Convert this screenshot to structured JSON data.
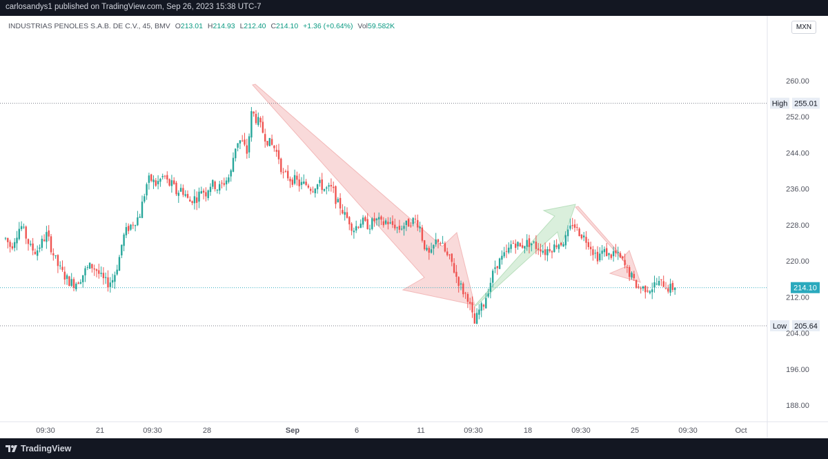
{
  "header": {
    "published_text": "carlosandys1 published on TradingView.com, Sep 26, 2023 15:38 UTC-7"
  },
  "legend": {
    "symbol": "INDUSTRIAS PENOLES S.A.B. DE C.V., 45, BMV",
    "open_label": "O",
    "open": "213.01",
    "high_label": "H",
    "high": "214.93",
    "low_label": "L",
    "low": "212.40",
    "close_label": "C",
    "close": "214.10",
    "change": "+1.36 (+0.64%)",
    "vol_label": "Vol",
    "volume": "59.582K"
  },
  "currency": "MXN",
  "footer": {
    "brand": "TradingView"
  },
  "colors": {
    "up": "#26a69a",
    "down": "#ef5350",
    "price_line": "#2aa9bd",
    "arrow_down_fill": "#f8d3d3",
    "arrow_up_fill": "#d4ecd6",
    "axis_text": "#50535e",
    "hl_label_bg": "#e8edf5"
  },
  "chart_data": {
    "type": "candlestick",
    "ylim": [
      180.0,
      268.0
    ],
    "y_ticks": [
      "260.00",
      "252.00",
      "244.00",
      "236.00",
      "228.00",
      "220.00",
      "212.00",
      "204.00",
      "196.00",
      "188.00"
    ],
    "x_ticks": [
      "09:30",
      "21",
      "09:30",
      "28",
      "Sep",
      "6",
      "11",
      "09:30",
      "18",
      "09:30",
      "25",
      "09:30",
      "Oct"
    ],
    "bold_x_ticks": [
      "Sep"
    ],
    "high_marker": {
      "label": "High",
      "value": "255.01"
    },
    "low_marker": {
      "label": "Low",
      "value": "205.64"
    },
    "last_price": "214.10",
    "candle_path": [
      [
        0,
        224
      ],
      [
        8,
        225
      ],
      [
        16,
        223
      ],
      [
        24,
        226
      ],
      [
        30,
        228
      ],
      [
        36,
        226
      ],
      [
        44,
        223
      ],
      [
        52,
        222
      ],
      [
        60,
        224
      ],
      [
        68,
        226
      ],
      [
        76,
        222
      ],
      [
        84,
        219
      ],
      [
        92,
        217
      ],
      [
        100,
        215.5
      ],
      [
        108,
        215
      ],
      [
        116,
        216
      ],
      [
        124,
        218
      ],
      [
        132,
        219
      ],
      [
        140,
        218
      ],
      [
        148,
        216
      ],
      [
        156,
        215
      ],
      [
        164,
        216
      ],
      [
        172,
        220
      ],
      [
        178,
        225
      ],
      [
        184,
        227
      ],
      [
        190,
        228
      ],
      [
        196,
        229
      ],
      [
        202,
        230
      ],
      [
        208,
        234
      ],
      [
        214,
        238
      ],
      [
        220,
        238
      ],
      [
        226,
        237
      ],
      [
        232,
        238
      ],
      [
        238,
        239
      ],
      [
        244,
        237
      ],
      [
        250,
        237
      ],
      [
        256,
        235
      ],
      [
        262,
        236
      ],
      [
        268,
        235
      ],
      [
        274,
        233
      ],
      [
        280,
        234
      ],
      [
        286,
        234
      ],
      [
        292,
        236
      ],
      [
        298,
        235
      ],
      [
        304,
        237
      ],
      [
        310,
        237
      ],
      [
        316,
        236
      ],
      [
        322,
        237
      ],
      [
        328,
        238
      ],
      [
        334,
        239
      ],
      [
        340,
        245
      ],
      [
        346,
        247
      ],
      [
        352,
        246
      ],
      [
        358,
        244
      ],
      [
        362,
        249
      ],
      [
        366,
        255
      ],
      [
        368,
        252
      ],
      [
        374,
        251
      ],
      [
        380,
        249
      ],
      [
        386,
        247
      ],
      [
        392,
        246
      ],
      [
        398,
        245
      ],
      [
        404,
        243
      ],
      [
        410,
        239
      ],
      [
        416,
        239
      ],
      [
        422,
        238
      ],
      [
        428,
        238
      ],
      [
        434,
        237
      ],
      [
        440,
        237
      ],
      [
        446,
        237
      ],
      [
        452,
        236
      ],
      [
        458,
        237
      ],
      [
        464,
        237
      ],
      [
        470,
        236
      ],
      [
        476,
        236
      ],
      [
        482,
        236
      ],
      [
        488,
        233
      ],
      [
        494,
        232
      ],
      [
        500,
        230
      ],
      [
        506,
        229
      ],
      [
        512,
        227
      ],
      [
        518,
        228
      ],
      [
        524,
        229
      ],
      [
        530,
        228
      ],
      [
        536,
        228
      ],
      [
        542,
        229
      ],
      [
        548,
        229
      ],
      [
        554,
        228
      ],
      [
        560,
        229
      ],
      [
        566,
        228
      ],
      [
        572,
        228
      ],
      [
        578,
        227
      ],
      [
        584,
        228
      ],
      [
        590,
        228
      ],
      [
        596,
        229
      ],
      [
        602,
        229
      ],
      [
        608,
        228
      ],
      [
        612,
        225
      ],
      [
        618,
        222
      ],
      [
        624,
        221
      ],
      [
        630,
        224
      ],
      [
        636,
        225
      ],
      [
        642,
        223
      ],
      [
        648,
        221
      ],
      [
        654,
        220
      ],
      [
        660,
        217
      ],
      [
        666,
        215
      ],
      [
        672,
        213
      ],
      [
        678,
        212
      ],
      [
        684,
        208
      ],
      [
        688,
        206
      ],
      [
        694,
        209
      ],
      [
        700,
        210
      ],
      [
        706,
        213
      ],
      [
        712,
        216
      ],
      [
        718,
        219
      ],
      [
        724,
        220
      ],
      [
        730,
        221
      ],
      [
        736,
        222
      ],
      [
        742,
        224
      ],
      [
        748,
        224
      ],
      [
        754,
        223
      ],
      [
        760,
        224
      ],
      [
        766,
        224
      ],
      [
        772,
        224
      ],
      [
        778,
        223
      ],
      [
        784,
        223
      ],
      [
        790,
        222
      ],
      [
        796,
        223
      ],
      [
        802,
        223
      ],
      [
        808,
        224
      ],
      [
        814,
        224
      ],
      [
        820,
        225
      ],
      [
        826,
        227
      ],
      [
        830,
        228.5
      ],
      [
        836,
        227
      ],
      [
        842,
        226
      ],
      [
        848,
        225
      ],
      [
        854,
        224
      ],
      [
        860,
        222
      ],
      [
        866,
        221
      ],
      [
        872,
        222
      ],
      [
        878,
        222
      ],
      [
        884,
        221
      ],
      [
        890,
        222
      ],
      [
        896,
        221
      ],
      [
        902,
        220
      ],
      [
        908,
        218
      ],
      [
        914,
        217
      ],
      [
        920,
        215
      ],
      [
        926,
        214
      ],
      [
        932,
        214
      ],
      [
        938,
        214
      ],
      [
        944,
        214
      ],
      [
        950,
        215
      ],
      [
        956,
        215
      ],
      [
        962,
        215
      ],
      [
        968,
        214
      ],
      [
        974,
        214
      ],
      [
        980,
        214.1
      ]
    ]
  }
}
